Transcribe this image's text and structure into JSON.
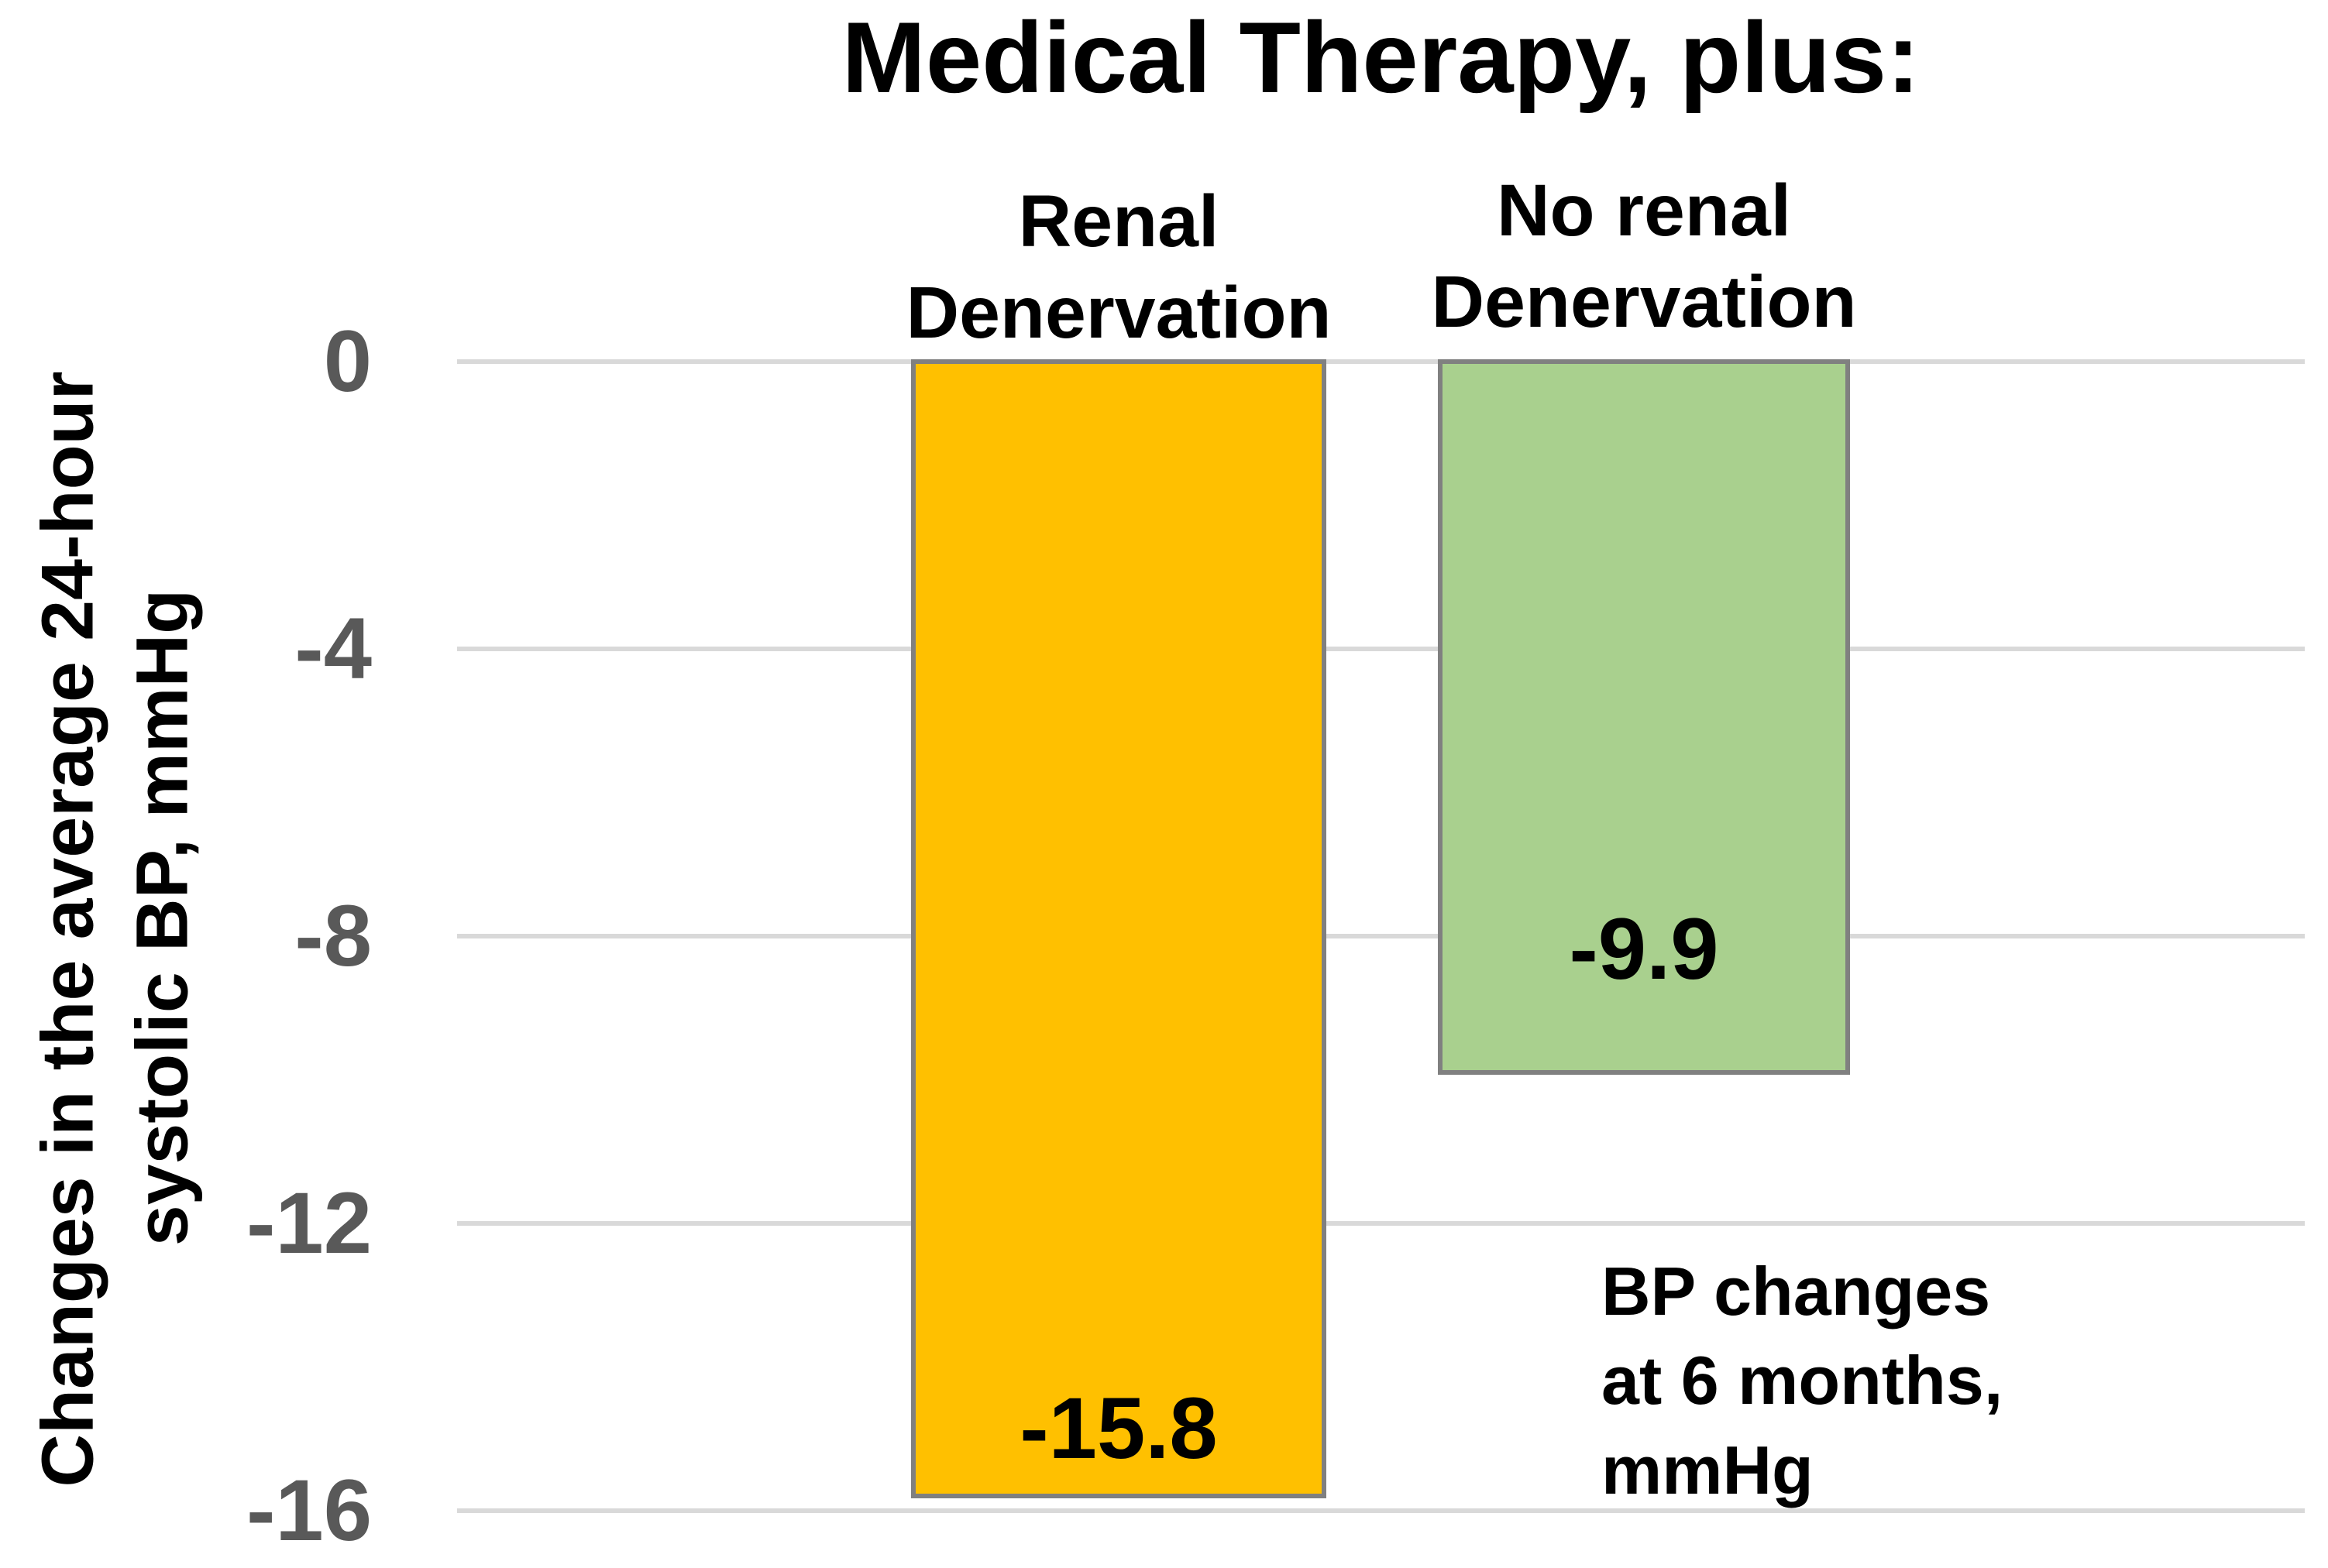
{
  "title": "Medical Therapy, plus:",
  "y_axis": {
    "label_line1": "Changes in the average 24-hour",
    "label_line2": "systolic BP, mmHg",
    "tick_labels": [
      "0",
      "-4",
      "-8",
      "-12",
      "-16"
    ]
  },
  "columns": [
    {
      "header": "Renal\nDenervation",
      "value_label": "-15.8"
    },
    {
      "header": "No renal\nDenervation",
      "value_label": "-9.9"
    }
  ],
  "annotation": "BP changes\nat 6 months,\nmmHg",
  "colors": {
    "bar_renal_denervation": "#FFC000",
    "bar_no_renal_denervation": "#A9D08E",
    "bar_border": "#808080",
    "gridline": "#D9D9D9",
    "tick_text": "#595959",
    "text": "#000000",
    "background": "#FFFFFF"
  },
  "chart_data": {
    "type": "bar",
    "title": "Medical Therapy, plus:",
    "categories": [
      "Renal Denervation",
      "No renal Denervation"
    ],
    "values": [
      -15.8,
      -9.9
    ],
    "value_labels": [
      "-15.8",
      "-9.9"
    ],
    "bar_colors": [
      "#FFC000",
      "#A9D08E"
    ],
    "xlabel": "",
    "ylabel": "Changes in the average 24-hour systolic BP, mmHg",
    "ylim": [
      -16,
      0
    ],
    "yticks": [
      0,
      -4,
      -8,
      -12,
      -16
    ],
    "grid": true,
    "legend": false,
    "annotation": "BP changes at 6 months, mmHg"
  }
}
